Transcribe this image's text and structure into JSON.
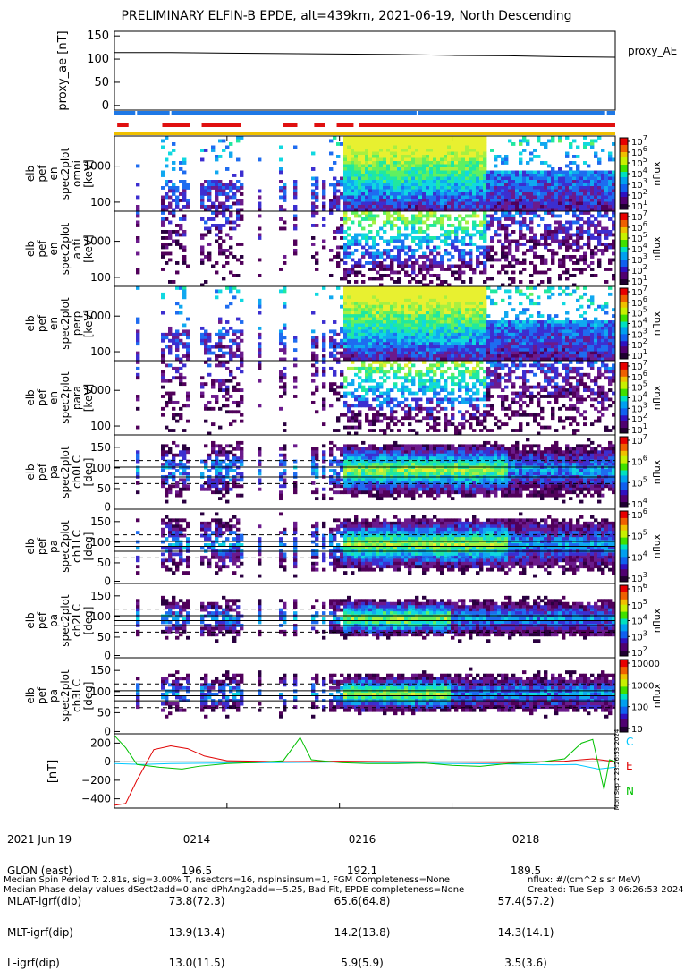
{
  "title": "PRELIMINARY ELFIN-B EPDE, alt=439km, 2021-06-19, North Descending",
  "chart_data": [
    {
      "type": "line",
      "panel": "proxy_AE",
      "ylabel": "proxy_ae [nT]",
      "legend": "proxy_AE",
      "yticks": [
        "150",
        "100",
        "50",
        "0"
      ],
      "ylim": [
        -10,
        160
      ],
      "x_range_minutes": [
        0,
        8.9
      ],
      "series": [
        {
          "name": "proxy_AE",
          "points": [
            [
              0,
              114
            ],
            [
              1,
              114
            ],
            [
              2,
              113
            ],
            [
              3,
              112
            ],
            [
              4,
              111
            ],
            [
              5,
              110
            ],
            [
              6,
              108
            ],
            [
              7,
              107
            ],
            [
              8,
              105
            ],
            [
              8.9,
              104
            ]
          ]
        }
      ]
    },
    {
      "type": "heatmap",
      "panel": "elb_pef_en_spec2plot_omni",
      "ylabel": [
        "elb",
        "pef",
        "en",
        "spec2plot",
        "omni",
        "[keV]"
      ],
      "yticks": [
        "1000",
        "100"
      ],
      "colorbar_label": "nflux",
      "colorbar_ticks": [
        "10^7",
        "10^6",
        "10^5",
        "10^4",
        "10^3",
        "10^2",
        "10^1"
      ]
    },
    {
      "type": "heatmap",
      "panel": "elb_pef_en_spec2plot_anti",
      "ylabel": [
        "elb",
        "pef",
        "en",
        "spec2plot",
        "anti",
        "[keV]"
      ],
      "yticks": [
        "1000",
        "100"
      ],
      "colorbar_label": "nflux",
      "colorbar_ticks": [
        "10^7",
        "10^6",
        "10^5",
        "10^4",
        "10^3",
        "10^2",
        "10^1"
      ]
    },
    {
      "type": "heatmap",
      "panel": "elb_pef_en_spec2plot_perp",
      "ylabel": [
        "elb",
        "pef",
        "en",
        "spec2plot",
        "perp",
        "[keV]"
      ],
      "yticks": [
        "1000",
        "100"
      ],
      "colorbar_label": "nflux",
      "colorbar_ticks": [
        "10^7",
        "10^6",
        "10^5",
        "10^4",
        "10^3",
        "10^2",
        "10^1"
      ]
    },
    {
      "type": "heatmap",
      "panel": "elb_pef_en_spec2plot_para",
      "ylabel": [
        "elb",
        "pef",
        "en",
        "spec2plot",
        "para",
        "[keV]"
      ],
      "yticks": [
        "1000",
        "100"
      ],
      "colorbar_label": "nflux",
      "colorbar_ticks": [
        "10^7",
        "10^6",
        "10^5",
        "10^4",
        "10^3",
        "10^2",
        "10^1"
      ]
    },
    {
      "type": "heatmap",
      "panel": "elb_pef_pa_spec2plot_ch0LC",
      "ylabel": [
        "elb",
        "pef",
        "pa",
        "spec2plot",
        "ch0LC",
        "[deg]"
      ],
      "yticks": [
        "150",
        "100",
        "50",
        "0"
      ],
      "colorbar_label": "nflux",
      "colorbar_ticks": [
        "10^7",
        "10^6",
        "10^5",
        "10^4"
      ]
    },
    {
      "type": "heatmap",
      "panel": "elb_pef_pa_spec2plot_ch1LC",
      "ylabel": [
        "elb",
        "pef",
        "pa",
        "spec2plot",
        "ch1LC",
        "[deg]"
      ],
      "yticks": [
        "150",
        "100",
        "50",
        "0"
      ],
      "colorbar_label": "nflux",
      "colorbar_ticks": [
        "10^6",
        "10^5",
        "10^4",
        "10^3"
      ]
    },
    {
      "type": "heatmap",
      "panel": "elb_pef_pa_spec2plot_ch2LC",
      "ylabel": [
        "elb",
        "pef",
        "pa",
        "spec2plot",
        "ch2LC",
        "[deg]"
      ],
      "yticks": [
        "150",
        "100",
        "50",
        "0"
      ],
      "colorbar_label": "nflux",
      "colorbar_ticks": [
        "10^6",
        "10^5",
        "10^4",
        "10^3",
        "10^2"
      ]
    },
    {
      "type": "heatmap",
      "panel": "elb_pef_pa_spec2plot_ch3LC",
      "ylabel": [
        "elb",
        "pef",
        "pa",
        "spec2plot",
        "ch3LC",
        "[deg]"
      ],
      "yticks": [
        "150",
        "100",
        "50",
        "0"
      ],
      "colorbar_label": "nflux",
      "colorbar_ticks": [
        "10000",
        "1000",
        "100",
        "10"
      ]
    },
    {
      "type": "line",
      "panel": "magnetic_field",
      "ylabel": "[nT]",
      "yticks": [
        "200",
        "0",
        "−200",
        "−400"
      ],
      "ylim": [
        -500,
        300
      ],
      "legend": [
        "C",
        "E",
        "N"
      ],
      "series": [
        {
          "name": "C",
          "color": "#00c8ff",
          "points": [
            [
              0,
              -20
            ],
            [
              0.5,
              -30
            ],
            [
              1,
              -20
            ],
            [
              2,
              -15
            ],
            [
              3,
              -10
            ],
            [
              4,
              -5
            ],
            [
              5,
              -10
            ],
            [
              6,
              -20
            ],
            [
              7,
              -25
            ],
            [
              7.8,
              -35
            ],
            [
              8.2,
              -30
            ],
            [
              8.6,
              -80
            ],
            [
              8.9,
              -60
            ]
          ]
        },
        {
          "name": "E",
          "color": "#e00000",
          "points": [
            [
              0,
              -470
            ],
            [
              0.2,
              -450
            ],
            [
              0.4,
              -200
            ],
            [
              0.7,
              130
            ],
            [
              1,
              170
            ],
            [
              1.3,
              140
            ],
            [
              1.6,
              60
            ],
            [
              2,
              10
            ],
            [
              3,
              0
            ],
            [
              4,
              5
            ],
            [
              5,
              0
            ],
            [
              6,
              -5
            ],
            [
              7,
              -10
            ],
            [
              8,
              5
            ],
            [
              8.5,
              30
            ],
            [
              8.9,
              0
            ]
          ]
        },
        {
          "name": "N",
          "color": "#00c000",
          "points": [
            [
              0,
              280
            ],
            [
              0.2,
              150
            ],
            [
              0.4,
              -30
            ],
            [
              0.8,
              -60
            ],
            [
              1.2,
              -80
            ],
            [
              1.5,
              -50
            ],
            [
              2,
              -20
            ],
            [
              2.5,
              -10
            ],
            [
              3,
              10
            ],
            [
              3.3,
              260
            ],
            [
              3.5,
              20
            ],
            [
              4,
              -10
            ],
            [
              4.5,
              -20
            ],
            [
              5,
              -20
            ],
            [
              5.5,
              -15
            ],
            [
              6,
              -40
            ],
            [
              6.5,
              -50
            ],
            [
              7,
              -20
            ],
            [
              7.5,
              -10
            ],
            [
              8,
              30
            ],
            [
              8.3,
              200
            ],
            [
              8.5,
              240
            ],
            [
              8.7,
              -300
            ],
            [
              8.8,
              20
            ],
            [
              8.9,
              0
            ]
          ]
        }
      ]
    }
  ],
  "xaxis": {
    "rows": [
      "2021 Jun 19",
      "GLON (east)",
      "MLAT-igrf(dip)",
      "MLT-igrf(dip)",
      "L-igrf(dip)"
    ],
    "ticks": [
      {
        "minute": 2,
        "time": "0214",
        "glon": "196.5",
        "mlat": "73.8(72.3)",
        "mlt": "13.9(13.4)",
        "l": "13.0(11.5)"
      },
      {
        "minute": 4,
        "time": "0216",
        "glon": "192.1",
        "mlat": "65.6(64.8)",
        "mlt": "14.2(13.8)",
        "l": "5.9(5.9)"
      },
      {
        "minute": 6,
        "time": "0218",
        "glon": "189.5",
        "mlat": "57.4(57.2)",
        "mlt": "14.3(14.1)",
        "l": "3.5(3.6)"
      }
    ]
  },
  "footer": {
    "line1": "Median Spin Period T: 2.81s, sig=3.00% T, nsectors=16, nspinsinsum=1, FGM Completeness=None",
    "line2": "Median Phase delay values dSect2add=0 and dPhAng2add=−5.25, Bad Fit, EPDE completeness=None",
    "units": "nflux: #/(cm^2 s sr MeV)",
    "created": "Created: Tue Sep  3 06:26:53 2024",
    "side_stamp": "Mon Sep  2 23:26:53 2024"
  }
}
